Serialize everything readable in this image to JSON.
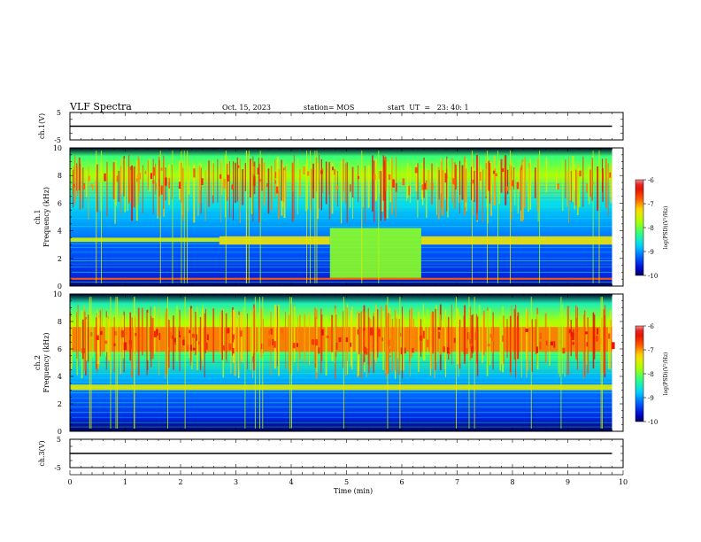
{
  "header": {
    "title": "VLF Spectra",
    "date": "Oct. 15, 2023",
    "station": "station= MOS",
    "start": "start  UT  =   23: 40: 1"
  },
  "colors": {
    "spectrum_stops": [
      "#000000",
      "#0000cc",
      "#0060ff",
      "#00d8ff",
      "#30ff80",
      "#b0ff00",
      "#ffe000",
      "#ff5000",
      "#e00000",
      "#ffffff"
    ]
  },
  "chart_data": [
    {
      "type": "line",
      "name": "ch1-voltage",
      "ylabel": "ch.1(V)",
      "ylim": [
        -5,
        5
      ],
      "yticks": [
        "5",
        "-5"
      ],
      "xlim": [
        0,
        10
      ],
      "series": [
        {
          "x": [
            0,
            9.8
          ],
          "y": [
            0,
            0
          ]
        }
      ]
    },
    {
      "type": "heatmap",
      "name": "ch1-spectrogram",
      "ylabel": "ch.1\nFrequency (kHz)",
      "ylim": [
        0,
        10
      ],
      "yticks": [
        "0",
        "2",
        "4",
        "6",
        "8",
        "10"
      ],
      "xlim": [
        0,
        10
      ],
      "data_end": 9.8,
      "colorbar": {
        "label": "log(PSD)(V²/Hz)",
        "range": [
          -10,
          -6
        ],
        "ticks": [
          "-6",
          "-7",
          "-8",
          "-9",
          "-10"
        ]
      },
      "bands": [
        {
          "x": [
            0,
            2.7
          ],
          "f": [
            3.2,
            3.5
          ],
          "level": -7.6
        },
        {
          "x": [
            2.7,
            4.7
          ],
          "f": [
            3.0,
            3.6
          ],
          "level": -7.4
        },
        {
          "x": [
            6.35,
            9.8
          ],
          "f": [
            3.0,
            3.6
          ],
          "level": -7.4
        },
        {
          "x": [
            4.7,
            6.35
          ],
          "f": [
            0.5,
            4.2
          ],
          "level": -7.9
        },
        {
          "x": [
            0,
            9.8
          ],
          "f": [
            0.45,
            0.6
          ],
          "level": -6.9
        }
      ],
      "sferics_level": -7.2
    },
    {
      "type": "heatmap",
      "name": "ch2-spectrogram",
      "ylabel": "ch.2\nFrequency (kHz)",
      "ylim": [
        0,
        10
      ],
      "yticks": [
        "0",
        "2",
        "4",
        "6",
        "8",
        "10"
      ],
      "xlim": [
        0,
        10
      ],
      "data_end": 9.8,
      "colorbar": {
        "label": "log(PSD)(V²/Hz)",
        "range": [
          -10,
          -6
        ],
        "ticks": [
          "-6",
          "-7",
          "-8",
          "-9",
          "-10"
        ]
      },
      "bands": [
        {
          "x": [
            0,
            9.8
          ],
          "f": [
            3.0,
            3.4
          ],
          "level": -7.5
        },
        {
          "x": [
            0,
            9.8
          ],
          "f": [
            5.8,
            7.6
          ],
          "level": -7.0
        }
      ],
      "sferics_level": -7.3
    },
    {
      "type": "line",
      "name": "ch3-voltage",
      "ylabel": "ch.3(V)",
      "ylim": [
        -5,
        5
      ],
      "yticks": [
        "5",
        "-5"
      ],
      "xlim": [
        0,
        10
      ],
      "series": [
        {
          "x": [
            0,
            9.8
          ],
          "y": [
            0,
            0
          ]
        }
      ]
    }
  ],
  "xaxis": {
    "label": "Time (min)",
    "ticks": [
      "0",
      "1",
      "2",
      "3",
      "4",
      "5",
      "6",
      "7",
      "8",
      "9",
      "10"
    ]
  }
}
